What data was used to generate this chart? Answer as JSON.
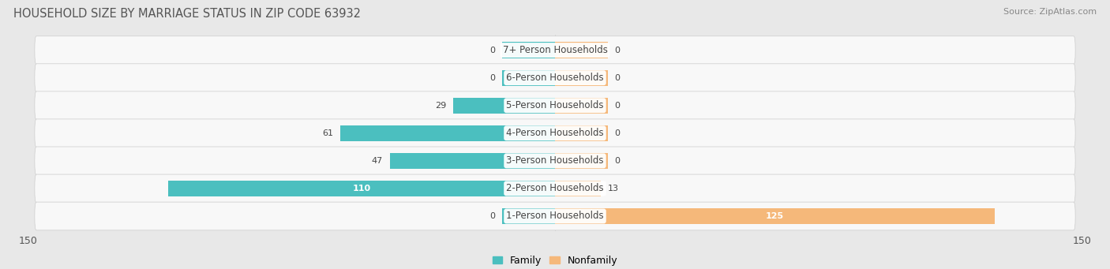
{
  "title": "HOUSEHOLD SIZE BY MARRIAGE STATUS IN ZIP CODE 63932",
  "source": "Source: ZipAtlas.com",
  "categories": [
    "7+ Person Households",
    "6-Person Households",
    "5-Person Households",
    "4-Person Households",
    "3-Person Households",
    "2-Person Households",
    "1-Person Households"
  ],
  "family_values": [
    0,
    0,
    29,
    61,
    47,
    110,
    0
  ],
  "nonfamily_values": [
    0,
    0,
    0,
    0,
    0,
    13,
    125
  ],
  "family_color": "#4BBFBF",
  "nonfamily_color": "#F5B87A",
  "xlim": 150,
  "bar_height": 0.58,
  "bg_color": "#e8e8e8",
  "row_bg_color": "#f5f5f5",
  "title_fontsize": 10.5,
  "source_fontsize": 8,
  "tick_fontsize": 9,
  "label_fontsize": 8.5,
  "value_fontsize": 8,
  "legend_fontsize": 9,
  "stub_size": 15
}
